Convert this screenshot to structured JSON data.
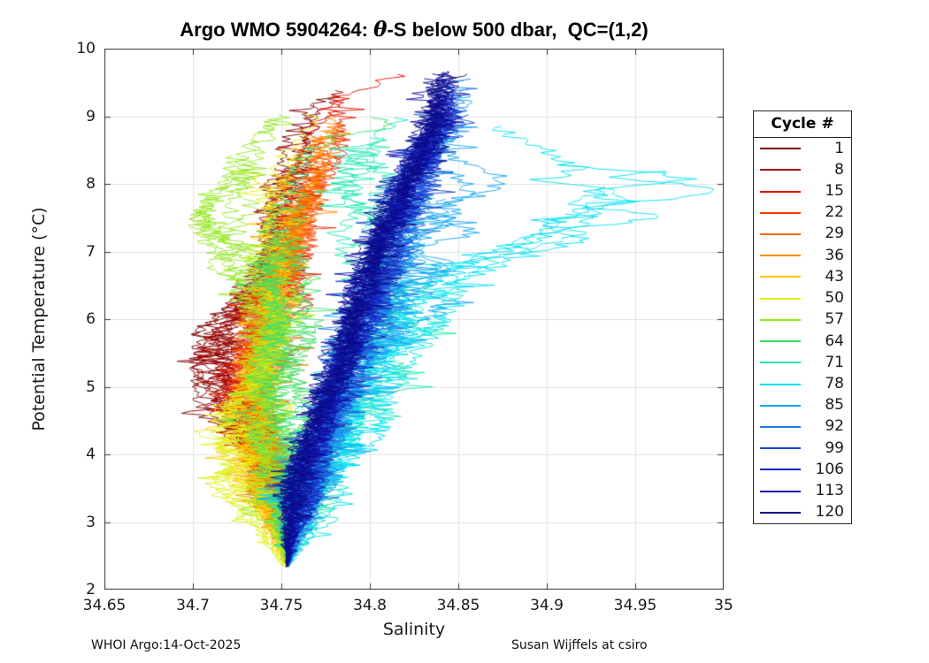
{
  "figure": {
    "title": {
      "prefix": "Argo WMO 5904264: ",
      "theta": "θ",
      "suffix": "-S below 500 dbar,  QC=(1,2)"
    },
    "footer_left": "WHOI Argo:14-Oct-2025",
    "footer_right": "Susan Wijffels at csiro"
  },
  "chart_data": {
    "type": "line",
    "title": "Argo WMO 5904264: θ-S below 500 dbar,  QC=(1,2)",
    "xlabel": "Salinity",
    "ylabel": "Potential Temperature (°C)",
    "xlim": [
      34.65,
      35
    ],
    "ylim": [
      2,
      10
    ],
    "grid": true,
    "grid_color": "#E0E0E0",
    "axis_color": "#333333",
    "x_ticks": {
      "values": [
        34.65,
        34.7,
        34.75,
        34.8,
        34.85,
        34.9,
        34.95,
        35
      ],
      "labels": [
        "34.65",
        "34.7",
        "34.75",
        "34.8",
        "34.85",
        "34.9",
        "34.95",
        "35"
      ]
    },
    "y_ticks": {
      "values": [
        2,
        3,
        4,
        5,
        6,
        7,
        8,
        9,
        10
      ],
      "labels": [
        "2",
        "3",
        "4",
        "5",
        "6",
        "7",
        "8",
        "9",
        "10"
      ]
    },
    "legend": {
      "title": "Cycle #",
      "position": "outside-right",
      "entries": [
        {
          "label": "1",
          "color": "#800000"
        },
        {
          "label": "8",
          "color": "#A00000"
        },
        {
          "label": "15",
          "color": "#E81400"
        },
        {
          "label": "22",
          "color": "#F03C00"
        },
        {
          "label": "29",
          "color": "#FA6400"
        },
        {
          "label": "36",
          "color": "#FF8C00"
        },
        {
          "label": "43",
          "color": "#FFC800"
        },
        {
          "label": "50",
          "color": "#E1F018"
        },
        {
          "label": "57",
          "color": "#96E828"
        },
        {
          "label": "64",
          "color": "#41DC64"
        },
        {
          "label": "71",
          "color": "#1EE6B4"
        },
        {
          "label": "78",
          "color": "#00E1F0"
        },
        {
          "label": "85",
          "color": "#14A5F0"
        },
        {
          "label": "92",
          "color": "#1E78E6"
        },
        {
          "label": "99",
          "color": "#1E46D2"
        },
        {
          "label": "106",
          "color": "#1423BE"
        },
        {
          "label": "113",
          "color": "#0F0FA5"
        },
        {
          "label": "120",
          "color": "#0A0A87"
        }
      ]
    },
    "series": [
      {
        "cycle": 1,
        "color": "#800000",
        "copies": 7,
        "spine_theta": [
          2.35,
          3.0,
          3.8,
          4.4,
          4.9,
          5.4,
          5.8,
          6.5,
          7.5,
          8.5,
          9.3
        ],
        "spine_salinity": [
          34.753,
          34.75,
          34.737,
          34.723,
          34.713,
          34.707,
          34.712,
          34.74,
          34.752,
          34.763,
          34.775
        ],
        "theta_top": [
          5.8,
          9.3
        ],
        "noise": 0.005,
        "wander": 0.01,
        "spike_amp": 0.025,
        "spike_theta": [
          4.3,
          5.9
        ]
      },
      {
        "cycle": 8,
        "color": "#A00000",
        "copies": 7,
        "spine_theta": [
          2.35,
          3,
          4,
          4.8,
          5.5,
          6,
          7,
          8,
          9,
          9.6
        ],
        "spine_salinity": [
          34.753,
          34.75,
          34.739,
          34.722,
          34.713,
          34.728,
          34.748,
          34.757,
          34.77,
          34.792
        ],
        "theta_top": [
          5.9,
          9.6
        ],
        "noise": 0.005,
        "wander": 0.01,
        "spike_amp": 0.02,
        "spike_theta": [
          4.4,
          5.8
        ]
      },
      {
        "cycle": 15,
        "color": "#E81400",
        "copies": 7,
        "spine_theta": [
          2.35,
          3,
          4,
          5,
          5.8,
          6.5,
          7.5,
          8.5,
          9.3,
          9.85
        ],
        "spine_salinity": [
          34.753,
          34.751,
          34.742,
          34.731,
          34.735,
          34.749,
          34.759,
          34.769,
          34.788,
          34.835
        ],
        "theta_top": [
          6.5,
          9.85
        ],
        "noise": 0.006,
        "wander": 0.011,
        "spike_amp": 0.02,
        "spike_theta": [
          5,
          6.2
        ]
      },
      {
        "cycle": 22,
        "color": "#F03C00",
        "copies": 7,
        "spine_theta": [
          2.35,
          3,
          4,
          5,
          6,
          7,
          8,
          8.8,
          9.4
        ],
        "spine_salinity": [
          34.753,
          34.75,
          34.741,
          34.733,
          34.741,
          34.754,
          34.764,
          34.778,
          34.8
        ],
        "theta_top": [
          6.5,
          9.4
        ],
        "noise": 0.006,
        "wander": 0.01,
        "spike_amp": 0,
        "spike_theta": [
          0,
          0
        ]
      },
      {
        "cycle": 29,
        "color": "#FA6400",
        "copies": 7,
        "spine_theta": [
          2.35,
          3,
          4,
          5,
          6,
          7,
          8,
          8.8,
          9.3
        ],
        "spine_salinity": [
          34.753,
          34.749,
          34.74,
          34.735,
          34.742,
          34.754,
          34.768,
          34.779,
          34.79
        ],
        "theta_top": [
          6.8,
          9.3
        ],
        "noise": 0.006,
        "wander": 0.01,
        "spike_amp": 0,
        "spike_theta": [
          0,
          0
        ]
      },
      {
        "cycle": 36,
        "color": "#FF8C00",
        "copies": 7,
        "spine_theta": [
          2.35,
          3,
          4,
          5,
          6,
          7,
          7.8,
          8.6,
          9.1
        ],
        "spine_salinity": [
          34.753,
          34.748,
          34.738,
          34.736,
          34.744,
          34.752,
          34.76,
          34.77,
          34.78
        ],
        "theta_top": [
          6.5,
          9.1
        ],
        "noise": 0.006,
        "wander": 0.009,
        "spike_amp": 0,
        "spike_theta": [
          0,
          0
        ]
      },
      {
        "cycle": 43,
        "color": "#FFC800",
        "copies": 7,
        "spine_theta": [
          2.35,
          3,
          3.7,
          4.4,
          5,
          6,
          7,
          8,
          8.8
        ],
        "spine_salinity": [
          34.753,
          34.742,
          34.728,
          34.725,
          34.738,
          34.746,
          34.742,
          34.751,
          34.77
        ],
        "theta_top": [
          5.5,
          8.8
        ],
        "noise": 0.006,
        "wander": 0.01,
        "spike_amp": 0.02,
        "spike_theta": [
          3,
          4.5
        ]
      },
      {
        "cycle": 50,
        "color": "#E1F018",
        "copies": 7,
        "spine_theta": [
          2.35,
          3,
          3.6,
          4.3,
          5,
          6,
          7,
          8,
          9,
          9.4
        ],
        "spine_salinity": [
          34.751,
          34.738,
          34.722,
          34.723,
          34.739,
          34.747,
          34.738,
          34.742,
          34.76,
          34.78
        ],
        "theta_top": [
          4.6,
          9.4
        ],
        "noise": 0.006,
        "wander": 0.012,
        "spike_amp": 0.025,
        "spike_theta": [
          2.9,
          4.5
        ]
      },
      {
        "cycle": 57,
        "color": "#96E828",
        "copies": 7,
        "spine_theta": [
          2.35,
          3,
          4,
          5,
          6,
          6.8,
          7.5,
          8.2,
          9,
          9.5
        ],
        "spine_salinity": [
          34.753,
          34.748,
          34.741,
          34.742,
          34.744,
          34.716,
          34.706,
          34.731,
          34.752,
          34.77
        ],
        "theta_top": [
          7,
          9.5
        ],
        "noise": 0.006,
        "wander": 0.012,
        "spike_amp": 0.025,
        "spike_theta": [
          6.5,
          7.8
        ]
      },
      {
        "cycle": 64,
        "color": "#41DC64",
        "copies": 7,
        "spine_theta": [
          2.35,
          3,
          4,
          5,
          5.8,
          6.5,
          7.3,
          8.2,
          9,
          9.5
        ],
        "spine_salinity": [
          34.754,
          34.755,
          34.75,
          34.75,
          34.758,
          34.75,
          34.742,
          34.76,
          34.786,
          34.83
        ],
        "theta_top": [
          5.8,
          9.5
        ],
        "noise": 0.007,
        "wander": 0.015,
        "spike_amp": 0.05,
        "spike_theta": [
          8.3,
          9.4
        ]
      },
      {
        "cycle": 71,
        "color": "#1EE6B4",
        "copies": 7,
        "spine_theta": [
          2.35,
          3,
          4,
          4.8,
          5.6,
          6.4,
          7.2,
          8,
          8.8,
          9.2
        ],
        "spine_salinity": [
          34.754,
          34.76,
          34.773,
          34.783,
          34.796,
          34.805,
          34.8,
          34.798,
          34.815,
          34.83
        ],
        "theta_top": [
          5.6,
          9.2
        ],
        "noise": 0.008,
        "wander": 0.015,
        "spike_amp": 0.03,
        "spike_theta": [
          4.4,
          6.6
        ]
      },
      {
        "cycle": 78,
        "color": "#00E1F0",
        "copies": 7,
        "spine_theta": [
          2.35,
          3,
          4,
          5,
          6,
          6.8,
          7.4,
          7.9,
          8.4,
          8.9
        ],
        "spine_salinity": [
          34.754,
          34.764,
          34.779,
          34.798,
          34.825,
          34.855,
          34.9,
          34.93,
          34.9,
          34.875
        ],
        "theta_top": [
          6,
          8.9
        ],
        "noise": 0.008,
        "wander": 0.02,
        "spike_amp": 0.055,
        "spike_theta": [
          6.8,
          8.6
        ]
      },
      {
        "cycle": 85,
        "color": "#14A5F0",
        "copies": 8,
        "spine_theta": [
          2.35,
          3,
          4,
          5,
          6,
          7,
          8,
          9,
          9.5
        ],
        "spine_salinity": [
          34.754,
          34.761,
          34.774,
          34.789,
          34.806,
          34.823,
          34.836,
          34.848,
          34.855
        ],
        "theta_top": [
          7,
          9.5
        ],
        "noise": 0.007,
        "wander": 0.012,
        "spike_amp": 0.025,
        "spike_theta": [
          5.5,
          8
        ]
      },
      {
        "cycle": 92,
        "color": "#1E78E6",
        "copies": 8,
        "spine_theta": [
          2.35,
          3,
          4,
          5,
          6,
          7,
          8,
          9,
          9.6
        ],
        "spine_salinity": [
          34.754,
          34.759,
          34.771,
          34.785,
          34.799,
          34.814,
          34.829,
          34.844,
          34.851
        ],
        "theta_top": [
          8,
          9.6
        ],
        "noise": 0.006,
        "wander": 0.01,
        "spike_amp": 0,
        "spike_theta": [
          0,
          0
        ]
      },
      {
        "cycle": 99,
        "color": "#1E46D2",
        "copies": 8,
        "spine_theta": [
          2.35,
          3,
          4,
          5,
          6,
          7,
          8,
          9,
          9.6
        ],
        "spine_salinity": [
          34.754,
          34.758,
          34.769,
          34.782,
          34.796,
          34.811,
          34.826,
          34.841,
          34.849
        ],
        "theta_top": [
          8.5,
          9.6
        ],
        "noise": 0.006,
        "wander": 0.009,
        "spike_amp": 0,
        "spike_theta": [
          0,
          0
        ]
      },
      {
        "cycle": 106,
        "color": "#1423BE",
        "copies": 8,
        "spine_theta": [
          2.35,
          3,
          4,
          5,
          6,
          7,
          8,
          9,
          9.7
        ],
        "spine_salinity": [
          34.753,
          34.757,
          34.767,
          34.78,
          34.794,
          34.808,
          34.823,
          34.839,
          34.847
        ],
        "theta_top": [
          8.8,
          9.7
        ],
        "noise": 0.005,
        "wander": 0.008,
        "spike_amp": 0,
        "spike_theta": [
          0,
          0
        ]
      },
      {
        "cycle": 113,
        "color": "#0F0FA5",
        "copies": 8,
        "spine_theta": [
          2.35,
          3,
          4,
          5,
          6,
          7,
          8,
          9,
          9.7
        ],
        "spine_salinity": [
          34.753,
          34.756,
          34.766,
          34.778,
          34.792,
          34.806,
          34.821,
          34.837,
          34.845
        ],
        "theta_top": [
          9,
          9.7
        ],
        "noise": 0.005,
        "wander": 0.008,
        "spike_amp": 0,
        "spike_theta": [
          0,
          0
        ]
      },
      {
        "cycle": 120,
        "color": "#0A0A87",
        "copies": 8,
        "spine_theta": [
          2.35,
          3,
          4,
          5,
          6,
          7,
          8,
          9,
          9.75
        ],
        "spine_salinity": [
          34.753,
          34.755,
          34.764,
          34.776,
          34.79,
          34.804,
          34.818,
          34.835,
          34.843
        ],
        "theta_top": [
          9.2,
          9.75
        ],
        "noise": 0.005,
        "wander": 0.007,
        "spike_amp": 0,
        "spike_theta": [
          0,
          0
        ]
      }
    ]
  }
}
